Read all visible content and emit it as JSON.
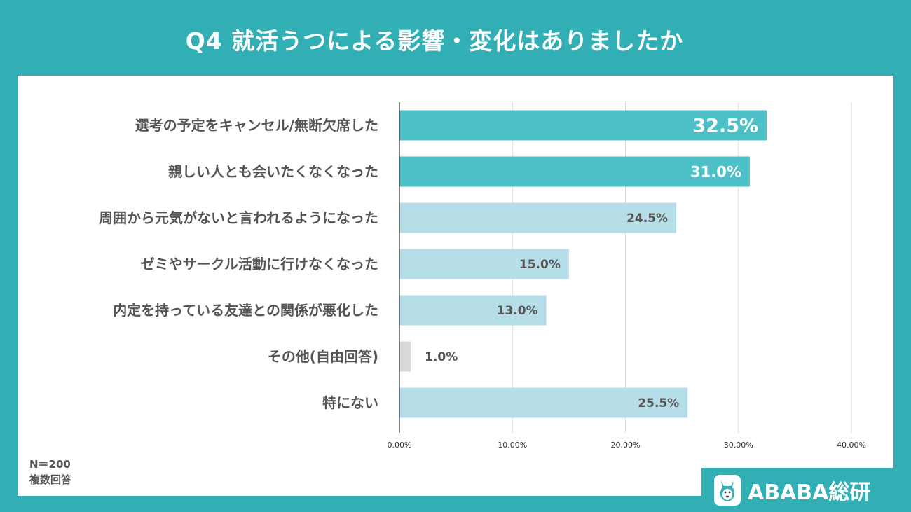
{
  "header": {
    "title": "Q4  就活うつによる影響・変化はありましたか"
  },
  "chart_data": {
    "type": "bar",
    "orientation": "horizontal",
    "categories": [
      "選考の予定をキャンセル/無断欠席した",
      "親しい人とも会いたくなくなった",
      "周囲から元気がないと言われるようになった",
      "ゼミやサークル活動に行けなくなった",
      "内定を持っている友達との関係が悪化した",
      "その他(自由回答)",
      "特にない"
    ],
    "values": [
      32.5,
      31.0,
      24.5,
      15.0,
      13.0,
      1.0,
      25.5
    ],
    "value_labels": [
      "32.5%",
      "31.0%",
      "24.5%",
      "15.0%",
      "13.0%",
      "1.0%",
      "25.5%"
    ],
    "xlim": [
      0,
      40
    ],
    "x_ticks": [
      0,
      10,
      20,
      30,
      40
    ],
    "x_tick_labels": [
      "0.00%",
      "10.00%",
      "20.00%",
      "30.00%",
      "40.00%"
    ],
    "grid": true,
    "colors": {
      "highlight": "#4dbfc7",
      "normal": "#b6dee8",
      "other": "#d9d9d9",
      "gridline": "#d9d9d9"
    }
  },
  "notes": {
    "n": "N＝200",
    "multi": "複数回答"
  },
  "brand": {
    "name": "ABABA総研",
    "icon": "alpaca-mascot-icon"
  }
}
